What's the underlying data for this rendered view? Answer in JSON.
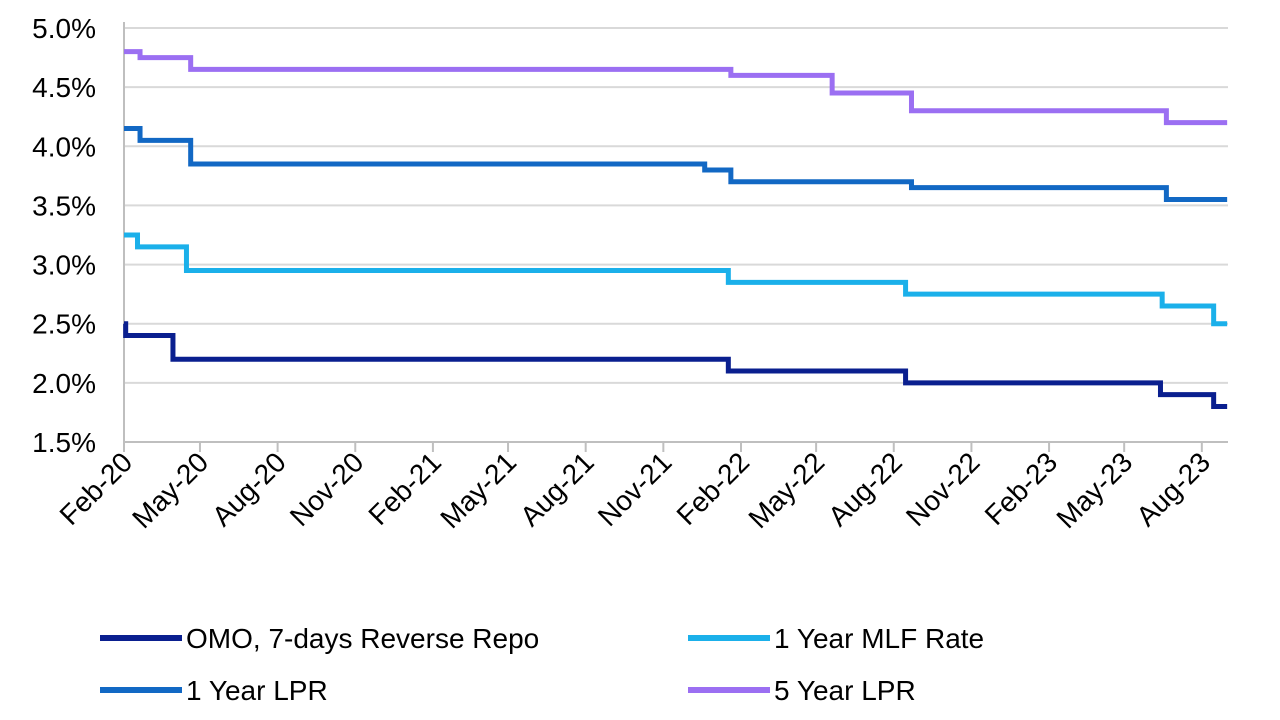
{
  "chart_data": {
    "type": "line",
    "title": "",
    "xlabel": "",
    "ylabel": "",
    "ylim": [
      1.5,
      5.0
    ],
    "xlim": [
      "2020-02-01",
      "2023-09-01"
    ],
    "y_ticks": [
      "1.5%",
      "2.0%",
      "2.5%",
      "3.0%",
      "3.5%",
      "4.0%",
      "4.5%",
      "5.0%"
    ],
    "x_ticks": [
      {
        "date": "2020-02-01",
        "label": "Feb-20"
      },
      {
        "date": "2020-05-01",
        "label": "May-20"
      },
      {
        "date": "2020-08-01",
        "label": "Aug-20"
      },
      {
        "date": "2020-11-01",
        "label": "Nov-20"
      },
      {
        "date": "2021-02-01",
        "label": "Feb-21"
      },
      {
        "date": "2021-05-01",
        "label": "May-21"
      },
      {
        "date": "2021-08-01",
        "label": "Aug-21"
      },
      {
        "date": "2021-11-01",
        "label": "Nov-21"
      },
      {
        "date": "2022-02-01",
        "label": "Feb-22"
      },
      {
        "date": "2022-05-01",
        "label": "May-22"
      },
      {
        "date": "2022-08-01",
        "label": "Aug-22"
      },
      {
        "date": "2022-11-01",
        "label": "Nov-22"
      },
      {
        "date": "2023-02-01",
        "label": "Feb-23"
      },
      {
        "date": "2023-05-01",
        "label": "May-23"
      },
      {
        "date": "2023-08-01",
        "label": "Aug-23"
      }
    ],
    "grid": true,
    "legend_position": "bottom",
    "series": [
      {
        "name": "OMO, 7-days Reverse Repo",
        "color": "#0a1f8f",
        "step": true,
        "x": [
          "2020-02-01",
          "2020-02-03",
          "2020-03-30",
          "2022-01-17",
          "2022-08-15",
          "2023-06-13",
          "2023-08-15",
          "2023-08-31"
        ],
        "y": [
          2.5,
          2.4,
          2.2,
          2.1,
          2.0,
          1.9,
          1.8,
          1.8
        ]
      },
      {
        "name": "1 Year MLF Rate",
        "color": "#1bb0ea",
        "step": true,
        "x": [
          "2020-02-01",
          "2020-02-17",
          "2020-04-15",
          "2022-01-17",
          "2022-08-15",
          "2023-06-15",
          "2023-08-15",
          "2023-08-31"
        ],
        "y": [
          3.25,
          3.15,
          2.95,
          2.85,
          2.75,
          2.65,
          2.5,
          2.5
        ]
      },
      {
        "name": "1 Year LPR",
        "color": "#1268c4",
        "step": true,
        "x": [
          "2020-02-01",
          "2020-02-20",
          "2020-04-20",
          "2021-12-20",
          "2022-01-20",
          "2022-08-22",
          "2023-06-20",
          "2023-08-31"
        ],
        "y": [
          4.15,
          4.05,
          3.85,
          3.8,
          3.7,
          3.65,
          3.55,
          3.55
        ]
      },
      {
        "name": "5 Year LPR",
        "color": "#9b6ff2",
        "step": true,
        "x": [
          "2020-02-01",
          "2020-02-20",
          "2020-04-20",
          "2022-01-20",
          "2022-05-20",
          "2022-08-22",
          "2023-06-20",
          "2023-08-31"
        ],
        "y": [
          4.8,
          4.75,
          4.65,
          4.6,
          4.45,
          4.3,
          4.2,
          4.2
        ]
      }
    ]
  }
}
